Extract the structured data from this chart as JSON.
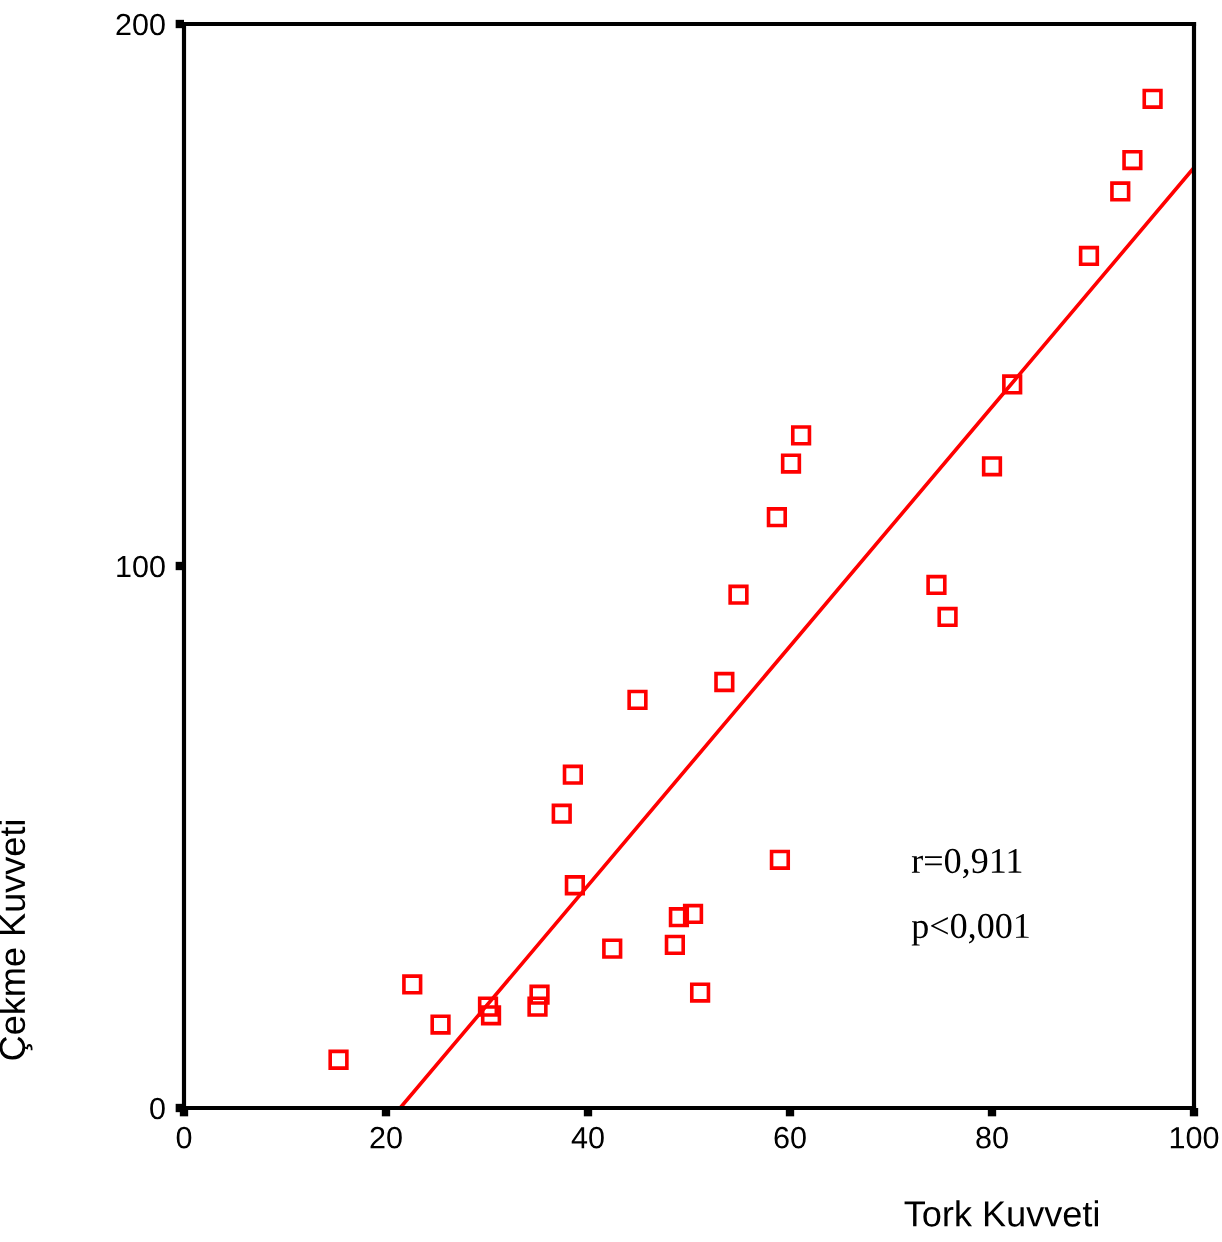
{
  "chart_data": {
    "type": "scatter",
    "xlabel": "Tork Kuvveti",
    "ylabel": "Çekme Kuvveti",
    "annotations": [
      "r=0,911",
      "p<0,001"
    ],
    "xlim": [
      0,
      100
    ],
    "ylim": [
      0,
      200
    ],
    "xticks": [
      0,
      20,
      40,
      60,
      80,
      100
    ],
    "yticks": [
      0,
      100,
      200
    ],
    "grid": false,
    "legend": false,
    "marker": "square",
    "series": [
      {
        "color": "#ff0000",
        "x": [
          15.3,
          22.6,
          25.4,
          30.1,
          30.4,
          35.0,
          35.2,
          37.4,
          38.5,
          38.7,
          42.4,
          44.9,
          48.6,
          49.0,
          50.4,
          51.1,
          53.5,
          54.9,
          59.0,
          58.7,
          60.1,
          61.1,
          74.5,
          75.6,
          80.0,
          82.0,
          89.6,
          92.7,
          93.9,
          95.9
        ],
        "values": [
          8.9,
          22.8,
          15.4,
          18.7,
          17.1,
          18.7,
          20.9,
          54.3,
          61.5,
          41.1,
          29.4,
          75.3,
          30.1,
          35.2,
          35.8,
          21.3,
          78.6,
          94.7,
          45.8,
          109.0,
          118.9,
          124.1,
          96.5,
          90.6,
          118.4,
          133.5,
          157.2,
          169.1,
          174.9,
          186.2
        ]
      },
      {
        "type": "line",
        "color": "#ff0000",
        "marker": "none",
        "x": [
          21.4,
          100
        ],
        "values": [
          0,
          173.5
        ]
      }
    ]
  }
}
